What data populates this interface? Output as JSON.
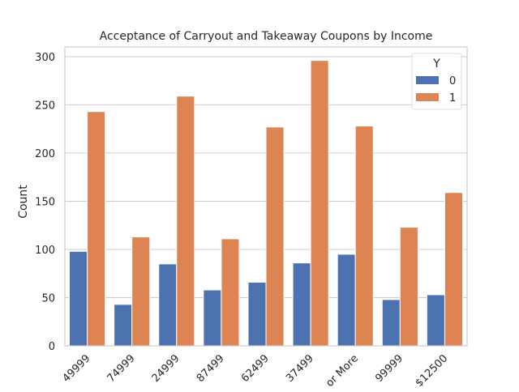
{
  "chart_data": {
    "type": "bar",
    "title": "Acceptance of Carryout and Takeaway Coupons by Income",
    "xlabel": "",
    "ylabel": "Count",
    "ylim": [
      0,
      310
    ],
    "yticks": [
      0,
      50,
      100,
      150,
      200,
      250,
      300
    ],
    "categories": [
      "49999",
      "74999",
      "24999",
      "87499",
      "62499",
      "37499",
      "or More",
      "99999",
      "$12500"
    ],
    "series": [
      {
        "name": "0",
        "color": "#4c72b0",
        "values": [
          98,
          43,
          85,
          58,
          66,
          86,
          95,
          48,
          53
        ]
      },
      {
        "name": "1",
        "color": "#dd8452",
        "values": [
          243,
          113,
          259,
          111,
          227,
          296,
          228,
          123,
          159
        ]
      }
    ],
    "legend": {
      "title": "Y",
      "position": "top-right"
    },
    "grid": "y",
    "style": "seaborn-whitegrid"
  }
}
